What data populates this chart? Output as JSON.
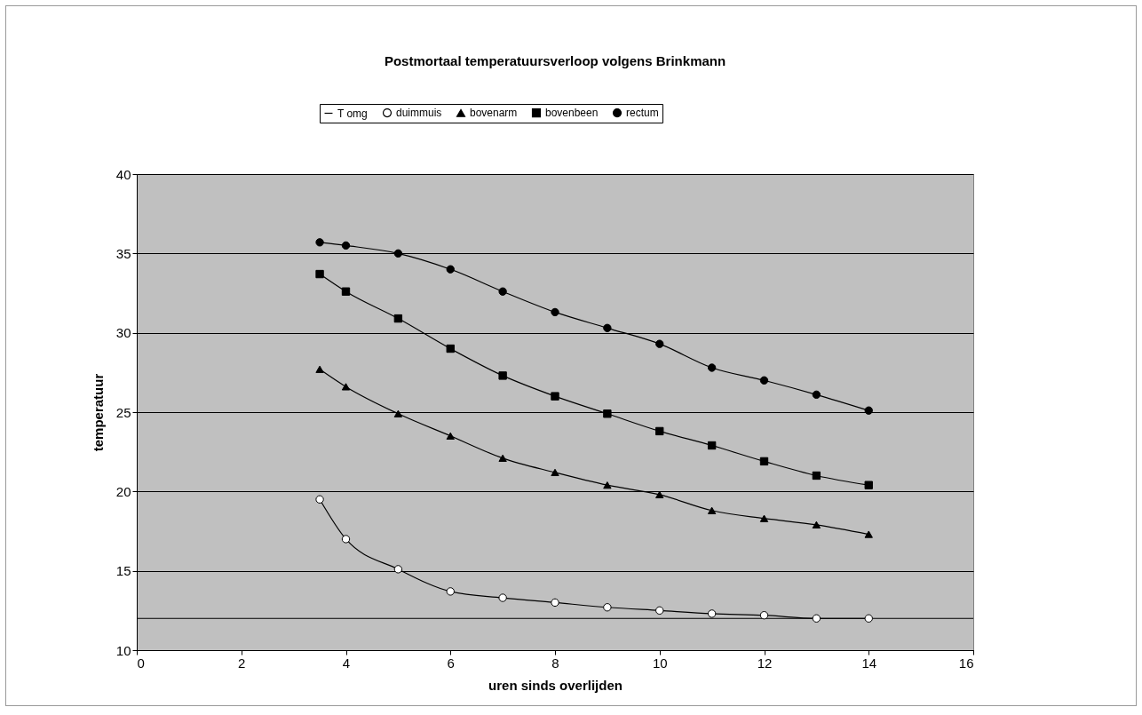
{
  "chart_data": {
    "type": "line",
    "title": "Postmortaal temperatuursverloop volgens Brinkmann",
    "xlabel": "uren sinds overlijden",
    "ylabel": "temperatuur",
    "x": [
      3.5,
      4,
      5,
      6,
      7,
      8,
      9,
      10,
      11,
      12,
      13,
      14
    ],
    "series": [
      {
        "name": "T omg",
        "color": "#000000",
        "marker": "none",
        "x": [
          0,
          16
        ],
        "values": [
          12,
          12
        ]
      },
      {
        "name": "duimmuis",
        "color": "#ffffff",
        "marker": "circle",
        "values": [
          19.5,
          17.0,
          15.1,
          13.7,
          13.3,
          13.0,
          12.7,
          12.5,
          12.3,
          12.2,
          12.0,
          12.0
        ]
      },
      {
        "name": "bovenarm",
        "color": "#000000",
        "marker": "triangle",
        "values": [
          27.7,
          26.6,
          24.9,
          23.5,
          22.1,
          21.2,
          20.4,
          19.8,
          18.8,
          18.3,
          17.9,
          17.3
        ]
      },
      {
        "name": "bovenbeen",
        "color": "#000000",
        "marker": "square",
        "values": [
          33.7,
          32.6,
          30.9,
          29.0,
          27.3,
          26.0,
          24.9,
          23.8,
          22.9,
          21.9,
          21.0,
          20.4
        ]
      },
      {
        "name": "rectum",
        "color": "#000000",
        "marker": "circle",
        "values": [
          35.7,
          35.5,
          35.0,
          34.0,
          32.6,
          31.3,
          30.3,
          29.3,
          27.8,
          27.0,
          26.1,
          25.1
        ]
      }
    ],
    "xlim": [
      0,
      16
    ],
    "xticks": [
      0,
      2,
      4,
      6,
      8,
      10,
      12,
      14,
      16
    ],
    "ylim": [
      10,
      40
    ],
    "yticks": [
      10,
      15,
      20,
      25,
      30,
      35,
      40
    ],
    "grid": "y",
    "legend": "top",
    "line_style": "solid"
  }
}
